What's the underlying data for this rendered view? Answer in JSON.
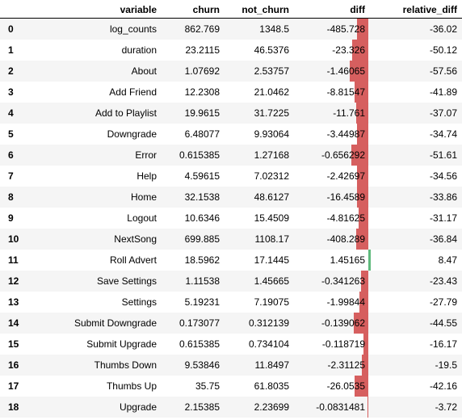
{
  "table": {
    "columns": {
      "index": "",
      "variable": "variable",
      "churn": "churn",
      "not_churn": "not_churn",
      "diff": "diff",
      "relative_diff": "relative_diff"
    },
    "bar_colors": {
      "negative": "#d65f5f",
      "positive": "#5fba7d"
    },
    "rows": [
      {
        "index": "0",
        "variable": "log_counts",
        "churn": "862.769",
        "not_churn": "1348.5",
        "diff": "-485.728",
        "relative_diff": "-36.02",
        "bar": -36.02
      },
      {
        "index": "1",
        "variable": "duration",
        "churn": "23.2115",
        "not_churn": "46.5376",
        "diff": "-23.326",
        "relative_diff": "-50.12",
        "bar": -50.12
      },
      {
        "index": "2",
        "variable": "About",
        "churn": "1.07692",
        "not_churn": "2.53757",
        "diff": "-1.46065",
        "relative_diff": "-57.56",
        "bar": -57.56
      },
      {
        "index": "3",
        "variable": "Add Friend",
        "churn": "12.2308",
        "not_churn": "21.0462",
        "diff": "-8.81547",
        "relative_diff": "-41.89",
        "bar": -41.89
      },
      {
        "index": "4",
        "variable": "Add to Playlist",
        "churn": "19.9615",
        "not_churn": "31.7225",
        "diff": "-11.761",
        "relative_diff": "-37.07",
        "bar": -37.07
      },
      {
        "index": "5",
        "variable": "Downgrade",
        "churn": "6.48077",
        "not_churn": "9.93064",
        "diff": "-3.44987",
        "relative_diff": "-34.74",
        "bar": -34.74
      },
      {
        "index": "6",
        "variable": "Error",
        "churn": "0.615385",
        "not_churn": "1.27168",
        "diff": "-0.656292",
        "relative_diff": "-51.61",
        "bar": -51.61
      },
      {
        "index": "7",
        "variable": "Help",
        "churn": "4.59615",
        "not_churn": "7.02312",
        "diff": "-2.42697",
        "relative_diff": "-34.56",
        "bar": -34.56
      },
      {
        "index": "8",
        "variable": "Home",
        "churn": "32.1538",
        "not_churn": "48.6127",
        "diff": "-16.4589",
        "relative_diff": "-33.86",
        "bar": -33.86
      },
      {
        "index": "9",
        "variable": "Logout",
        "churn": "10.6346",
        "not_churn": "15.4509",
        "diff": "-4.81625",
        "relative_diff": "-31.17",
        "bar": -31.17
      },
      {
        "index": "10",
        "variable": "NextSong",
        "churn": "699.885",
        "not_churn": "1108.17",
        "diff": "-408.289",
        "relative_diff": "-36.84",
        "bar": -36.84
      },
      {
        "index": "11",
        "variable": "Roll Advert",
        "churn": "18.5962",
        "not_churn": "17.1445",
        "diff": "1.45165",
        "relative_diff": "8.47",
        "bar": 8.47
      },
      {
        "index": "12",
        "variable": "Save Settings",
        "churn": "1.11538",
        "not_churn": "1.45665",
        "diff": "-0.341263",
        "relative_diff": "-23.43",
        "bar": -23.43
      },
      {
        "index": "13",
        "variable": "Settings",
        "churn": "5.19231",
        "not_churn": "7.19075",
        "diff": "-1.99844",
        "relative_diff": "-27.79",
        "bar": -27.79
      },
      {
        "index": "14",
        "variable": "Submit Downgrade",
        "churn": "0.173077",
        "not_churn": "0.312139",
        "diff": "-0.139062",
        "relative_diff": "-44.55",
        "bar": -44.55
      },
      {
        "index": "15",
        "variable": "Submit Upgrade",
        "churn": "0.615385",
        "not_churn": "0.734104",
        "diff": "-0.118719",
        "relative_diff": "-16.17",
        "bar": -16.17
      },
      {
        "index": "16",
        "variable": "Thumbs Down",
        "churn": "9.53846",
        "not_churn": "11.8497",
        "diff": "-2.31125",
        "relative_diff": "-19.5",
        "bar": -19.5
      },
      {
        "index": "17",
        "variable": "Thumbs Up",
        "churn": "35.75",
        "not_churn": "61.8035",
        "diff": "-26.0535",
        "relative_diff": "-42.16",
        "bar": -42.16
      },
      {
        "index": "18",
        "variable": "Upgrade",
        "churn": "2.15385",
        "not_churn": "2.23699",
        "diff": "-0.0831481",
        "relative_diff": "-3.72",
        "bar": -3.72
      }
    ]
  }
}
